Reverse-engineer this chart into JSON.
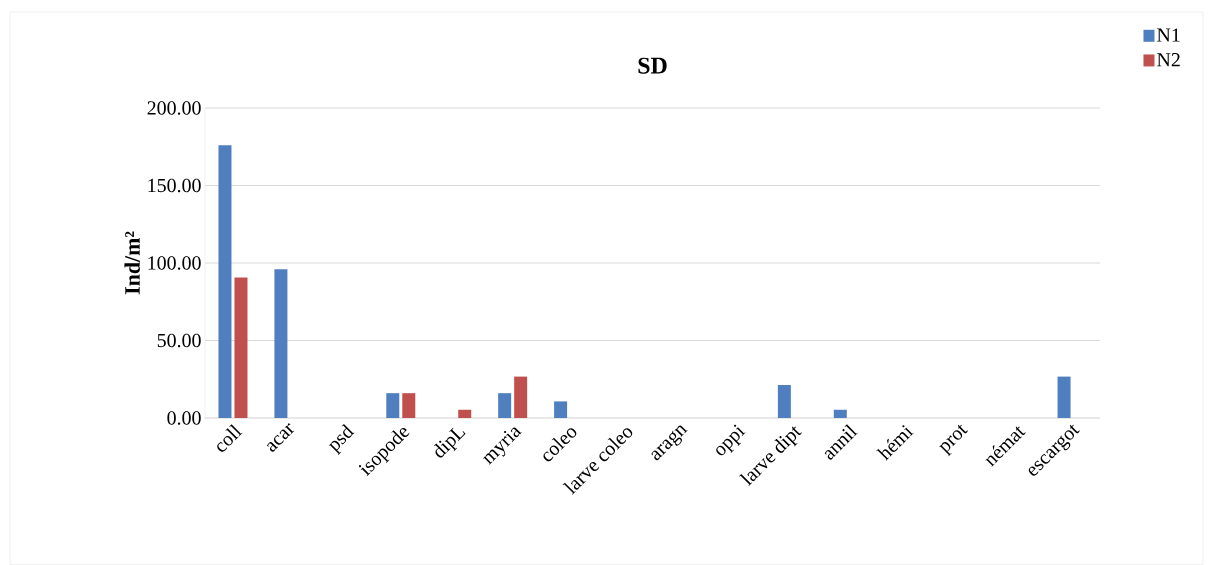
{
  "chart_data": {
    "type": "bar",
    "title": "SD",
    "ylabel": "Ind/m²",
    "categories": [
      "coll",
      "acar",
      "psd",
      "isopode",
      "dipL",
      "myria",
      "coleo",
      "larve coleo",
      "aragn",
      "oppi",
      "larve dipt",
      "annil",
      "hémi",
      "prot",
      "némat",
      "escargot"
    ],
    "series": [
      {
        "name": "N1",
        "color": "#4f7fbe",
        "values": [
          176,
          96,
          0,
          16,
          0,
          16,
          10.7,
          0,
          0,
          0,
          21.3,
          5.3,
          0,
          0,
          0,
          26.7
        ]
      },
      {
        "name": "N2",
        "color": "#c0504d",
        "values": [
          90.7,
          0,
          0,
          16,
          5.3,
          26.7,
          0,
          0,
          0,
          0,
          0,
          0,
          0,
          0,
          0,
          0
        ]
      }
    ],
    "ylim": [
      0,
      200
    ],
    "yticks": [
      {
        "value": 0,
        "label": "0.00"
      },
      {
        "value": 50,
        "label": "50.00"
      },
      {
        "value": 100,
        "label": "100.00"
      },
      {
        "value": 150,
        "label": "150.00"
      },
      {
        "value": 200,
        "label": "200.00"
      }
    ],
    "grid": "y",
    "legend": "top right"
  }
}
